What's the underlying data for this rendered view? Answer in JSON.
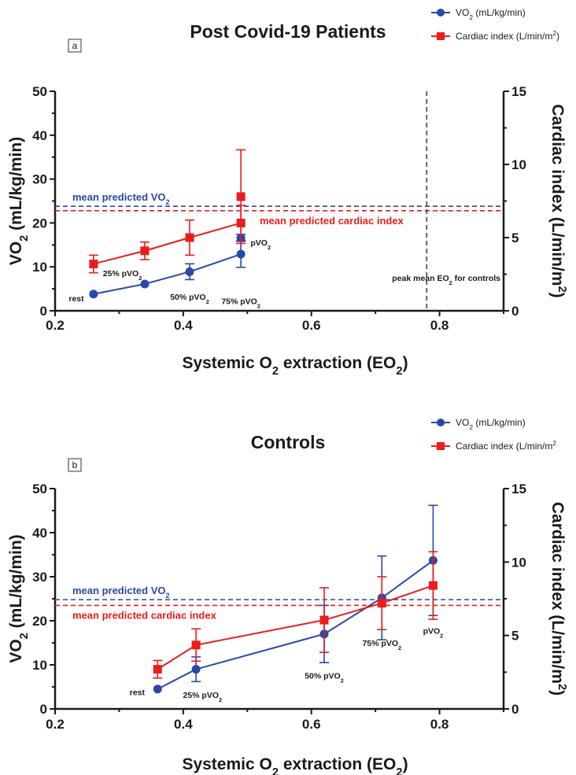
{
  "colors": {
    "vo2": "#2a48a8",
    "ci": "#ec1c1c",
    "axis": "#1a1a1a",
    "peak_line": "#444444"
  },
  "legend": {
    "vo2": {
      "text": "VO",
      "sub": "2",
      "after": " (mL/kg/min)",
      "marker": "circle"
    },
    "ci": {
      "text": "Cardiac index (L/min/m",
      "sup": "2",
      "after": ")",
      "marker": "square"
    },
    "ci_controls": {
      "text": "Cardiac index (L/min/m",
      "sup": "2",
      "after": ""
    }
  },
  "chart_data": [
    {
      "type": "line",
      "panel": "a",
      "title": "Post Covid-19 Patients",
      "xlabel": {
        "pre": "Systemic O",
        "sub": "2",
        "post": " extraction (EO",
        "sub2": "2",
        "post2": ")"
      },
      "ylabel": {
        "pre": "VO",
        "sub": "2",
        "post": "  (mL/kg/min)"
      },
      "y2label": {
        "pre": "Cardiac index (L/min/m",
        "sup": "2",
        "post": ")"
      },
      "xlim": [
        0.2,
        0.9
      ],
      "ylim": [
        0,
        50
      ],
      "y2lim": [
        0,
        15
      ],
      "xticks": [
        "0.2",
        "0.4",
        "0.6",
        "0.8"
      ],
      "yticks": [
        "0",
        "10",
        "20",
        "30",
        "40",
        "50"
      ],
      "y2ticks": [
        "0",
        "5",
        "10",
        "15"
      ],
      "series": [
        {
          "name": "VO2 (mL/kg/min)",
          "axis": "left",
          "marker": "circle",
          "x": [
            0.26,
            0.34,
            0.41,
            0.49
          ],
          "y": [
            3.8,
            6.1,
            8.9,
            12.9
          ],
          "err": [
            0,
            0,
            1.8,
            3.0
          ]
        },
        {
          "name": "Cardiac index (L/min/m2)",
          "axis": "right",
          "marker": "square",
          "x": [
            0.26,
            0.34,
            0.41,
            0.49
          ],
          "y": [
            3.2,
            4.1,
            5.0,
            6.0
          ],
          "err": [
            0.6,
            0.6,
            1.2,
            1.2
          ]
        }
      ],
      "peak_points": [
        {
          "axis": "left",
          "marker": "circle",
          "x": 0.49,
          "y": 16.6,
          "err": 0.8
        },
        {
          "axis": "right",
          "marker": "square",
          "x": 0.49,
          "y": 7.8,
          "err": 3.2
        }
      ],
      "reference_lines": [
        {
          "label": "mean predicted VO",
          "sub": "2",
          "axis": "left",
          "y": 23.8,
          "color": "#2a48a8",
          "label_side": "left"
        },
        {
          "label": "mean predicted cardiac index",
          "axis": "left",
          "y": 22.8,
          "color": "#ec1c1c",
          "label_side": "right"
        }
      ],
      "vertical_line": {
        "x": 0.78,
        "label": "peak mean EO",
        "sub": "2",
        "post": " for controls"
      },
      "annotations": [
        {
          "text": "rest",
          "sub": "",
          "x": 0.245,
          "y": 2.9,
          "anchor": "end"
        },
        {
          "text": "25% pVO",
          "sub": "2",
          "x": 0.305,
          "y": 8.6,
          "anchor": "middle"
        },
        {
          "text": "50% pVO",
          "sub": "2",
          "x": 0.41,
          "y": 3.2,
          "anchor": "middle"
        },
        {
          "text": "75% pVO",
          "sub": "2",
          "x": 0.49,
          "y": 2.2,
          "anchor": "middle"
        },
        {
          "text": "pVO",
          "sub": "2",
          "x": 0.505,
          "y": 15.6,
          "anchor": "start"
        }
      ]
    },
    {
      "type": "line",
      "panel": "b",
      "title": "Controls",
      "xlabel": {
        "pre": "Systemic O",
        "sub": "2",
        "post": " extraction (EO",
        "sub2": "2",
        "post2": ")"
      },
      "ylabel": {
        "pre": "VO",
        "sub": "2",
        "post": "  (mL/kg/min)"
      },
      "y2label": {
        "pre": "Cardiac index (L/min/m",
        "sup": "2",
        "post": ")"
      },
      "xlim": [
        0.2,
        0.9
      ],
      "ylim": [
        0,
        50
      ],
      "y2lim": [
        0,
        15
      ],
      "xticks": [
        "0.2",
        "0.4",
        "0.6",
        "0.8"
      ],
      "yticks": [
        "0",
        "10",
        "20",
        "30",
        "40",
        "50"
      ],
      "y2ticks": [
        "0",
        "5",
        "10",
        "15"
      ],
      "series": [
        {
          "name": "VO2 (mL/kg/min)",
          "axis": "left",
          "marker": "circle",
          "x": [
            0.36,
            0.42,
            0.62,
            0.71,
            0.79
          ],
          "y": [
            4.5,
            9.0,
            17.0,
            25.2,
            33.7
          ],
          "err": [
            0,
            2.8,
            6.5,
            9.5,
            12.5
          ]
        },
        {
          "name": "Cardiac index (L/min/m2)",
          "axis": "right",
          "marker": "square",
          "x": [
            0.36,
            0.42,
            0.62,
            0.71,
            0.79
          ],
          "y": [
            2.7,
            4.35,
            6.05,
            7.2,
            8.4
          ],
          "err": [
            0.6,
            1.1,
            2.2,
            1.8,
            2.3
          ]
        }
      ],
      "reference_lines": [
        {
          "label": "mean predicted VO",
          "sub": "2",
          "axis": "left",
          "y": 24.8,
          "color": "#2a48a8",
          "label_side": "left"
        },
        {
          "label": "mean predicted cardiac index",
          "axis": "left",
          "y": 23.5,
          "color": "#ec1c1c",
          "label_side": "left-below"
        }
      ],
      "annotations": [
        {
          "text": "rest",
          "sub": "",
          "x": 0.34,
          "y": 3.8,
          "anchor": "end"
        },
        {
          "text": "25% pVO",
          "sub": "2",
          "x": 0.43,
          "y": 3.2,
          "anchor": "middle"
        },
        {
          "text": "50% pVO",
          "sub": "2",
          "x": 0.62,
          "y": 7.6,
          "anchor": "middle"
        },
        {
          "text": "75% pVO",
          "sub": "2",
          "x": 0.71,
          "y": 15.0,
          "anchor": "middle"
        },
        {
          "text": "pVO",
          "sub": "2",
          "x": 0.79,
          "y": 17.8,
          "anchor": "middle"
        }
      ]
    }
  ]
}
